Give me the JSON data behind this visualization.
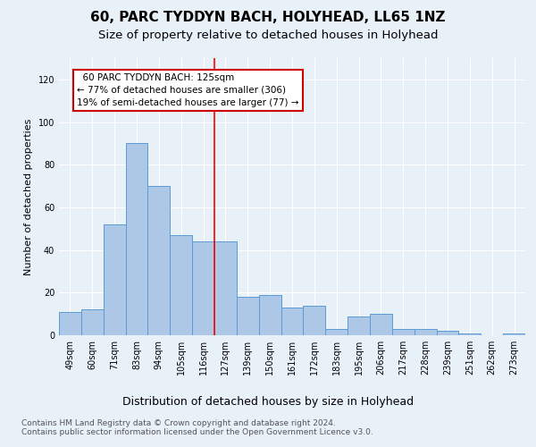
{
  "title": "60, PARC TYDDYN BACH, HOLYHEAD, LL65 1NZ",
  "subtitle": "Size of property relative to detached houses in Holyhead",
  "xlabel": "Distribution of detached houses by size in Holyhead",
  "ylabel": "Number of detached properties",
  "categories": [
    "49sqm",
    "60sqm",
    "71sqm",
    "83sqm",
    "94sqm",
    "105sqm",
    "116sqm",
    "127sqm",
    "139sqm",
    "150sqm",
    "161sqm",
    "172sqm",
    "183sqm",
    "195sqm",
    "206sqm",
    "217sqm",
    "228sqm",
    "239sqm",
    "251sqm",
    "262sqm",
    "273sqm"
  ],
  "values": [
    11,
    12,
    52,
    90,
    70,
    47,
    44,
    44,
    18,
    19,
    13,
    14,
    3,
    9,
    10,
    3,
    3,
    2,
    1,
    0,
    1
  ],
  "bar_color": "#adc8e6",
  "bar_edge_color": "#5b9bd5",
  "red_line_x": 6.5,
  "annotation_text": "  60 PARC TYDDYN BACH: 125sqm\n← 77% of detached houses are smaller (306)\n19% of semi-detached houses are larger (77) →",
  "annotation_box_color": "#ffffff",
  "annotation_box_edge_color": "#cc0000",
  "ylim": [
    0,
    130
  ],
  "yticks": [
    0,
    20,
    40,
    60,
    80,
    100,
    120
  ],
  "footer_line1": "Contains HM Land Registry data © Crown copyright and database right 2024.",
  "footer_line2": "Contains public sector information licensed under the Open Government Licence v3.0.",
  "background_color": "#e8f0f8",
  "plot_bg_color": "#e8f0f8",
  "grid_color": "#ffffff",
  "title_fontsize": 11,
  "subtitle_fontsize": 9.5,
  "ylabel_fontsize": 8,
  "xlabel_fontsize": 9,
  "tick_fontsize": 7,
  "annotation_fontsize": 7.5,
  "footer_fontsize": 6.5
}
